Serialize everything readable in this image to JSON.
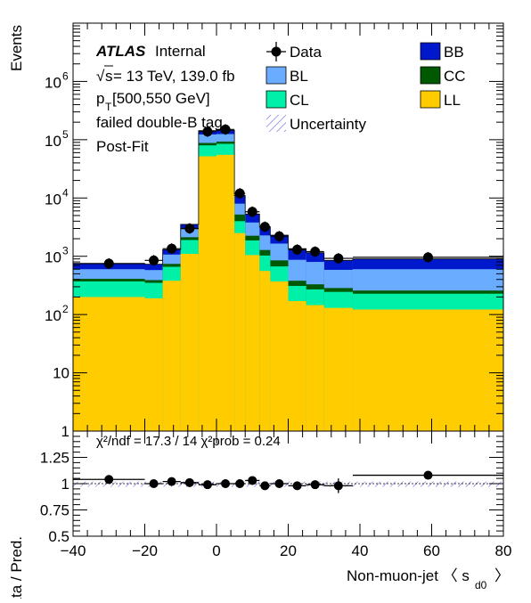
{
  "chart_data": [
    {
      "type": "stacked-histogram",
      "ylabel": "Events",
      "xlabel": "Non-muon-jet 〈 s",
      "xlabel_sub": "d0",
      "xlabel_end": "〉",
      "yscale": "log",
      "ylim": [
        1,
        10000000
      ],
      "xlim": [
        -40,
        80
      ],
      "y_ticks": [
        {
          "v": 1,
          "label": "1"
        },
        {
          "v": 10,
          "label": "10"
        },
        {
          "v": 100,
          "label": "10",
          "sup": "2"
        },
        {
          "v": 1000,
          "label": "10",
          "sup": "3"
        },
        {
          "v": 10000,
          "label": "10",
          "sup": "4"
        },
        {
          "v": 100000,
          "label": "10",
          "sup": "5"
        },
        {
          "v": 1000000,
          "label": "10",
          "sup": "6"
        }
      ],
      "bins": [
        [
          -40,
          -20
        ],
        [
          -20,
          -15
        ],
        [
          -15,
          -10
        ],
        [
          -10,
          -5
        ],
        [
          -5,
          0
        ],
        [
          0,
          5
        ],
        [
          5,
          8
        ],
        [
          8,
          12
        ],
        [
          12,
          15
        ],
        [
          15,
          20
        ],
        [
          20,
          25
        ],
        [
          25,
          30
        ],
        [
          30,
          38
        ],
        [
          38,
          80
        ]
      ],
      "series": [
        {
          "name": "LL",
          "color": "#ffcc00",
          "values": [
            200,
            190,
            380,
            1100,
            52000,
            55000,
            2500,
            1050,
            560,
            370,
            170,
            145,
            130,
            122
          ]
        },
        {
          "name": "CL",
          "color": "#00f0a8",
          "values": [
            170,
            160,
            280,
            800,
            28000,
            30000,
            1500,
            820,
            470,
            300,
            140,
            125,
            115,
            106
          ]
        },
        {
          "name": "CC",
          "color": "#005800",
          "values": [
            40,
            40,
            80,
            220,
            8000,
            8000,
            1200,
            380,
            250,
            180,
            70,
            60,
            40,
            30
          ]
        },
        {
          "name": "BL",
          "color": "#6aacff",
          "values": [
            190,
            190,
            330,
            800,
            35000,
            32000,
            2800,
            1550,
            1000,
            800,
            490,
            470,
            300,
            342
          ]
        },
        {
          "name": "BB",
          "color": "#0018cc",
          "values": [
            150,
            150,
            230,
            600,
            20000,
            20000,
            3000,
            1500,
            920,
            650,
            480,
            350,
            265,
            300
          ]
        }
      ],
      "data_points": [
        {
          "x": -30,
          "y": 750
        },
        {
          "x": -17.5,
          "y": 850
        },
        {
          "x": -12.5,
          "y": 1350
        },
        {
          "x": -7.5,
          "y": 3000
        },
        {
          "x": -2.5,
          "y": 138000
        },
        {
          "x": 2.5,
          "y": 150000
        },
        {
          "x": 6.5,
          "y": 12000
        },
        {
          "x": 10,
          "y": 5800
        },
        {
          "x": 13.5,
          "y": 3200
        },
        {
          "x": 17.5,
          "y": 2200
        },
        {
          "x": 22.5,
          "y": 1300
        },
        {
          "x": 27.5,
          "y": 1200
        },
        {
          "x": 34,
          "y": 920
        },
        {
          "x": 59,
          "y": 960
        }
      ],
      "legend": [
        {
          "name": "Data",
          "kind": "marker"
        },
        {
          "name": "BL",
          "kind": "box",
          "color": "#6aacff"
        },
        {
          "name": "CL",
          "kind": "box",
          "color": "#00f0a8"
        },
        {
          "name": "Uncertainty",
          "kind": "hatch"
        },
        {
          "name": "BB",
          "kind": "box",
          "color": "#0018cc"
        },
        {
          "name": "CC",
          "kind": "box",
          "color": "#005800"
        },
        {
          "name": "LL",
          "kind": "box",
          "color": "#ffcc00"
        }
      ],
      "legend_placement": "top-right",
      "annotations": {
        "atlas": "ATLAS",
        "internal": "Internal",
        "energy_prefix": "s",
        "energy": " = 13 TeV, 139.0 fb",
        "pt_label": "p",
        "pt_sub": "T",
        "pt_range": " [500,550 GeV]",
        "tag": "failed double-B tag",
        "fit": "Post-Fit"
      }
    },
    {
      "type": "ratio",
      "ylabel": "Data / Pred.",
      "ylim": [
        0.5,
        1.5
      ],
      "y_ticks": [
        {
          "v": 0.5,
          "label": "0.5"
        },
        {
          "v": 0.75,
          "label": "0.75"
        },
        {
          "v": 1,
          "label": "1"
        },
        {
          "v": 1.25,
          "label": "1.25"
        }
      ],
      "x_ticks": [
        {
          "v": -40,
          "label": "−40"
        },
        {
          "v": -20,
          "label": "−20"
        },
        {
          "v": 0,
          "label": "0"
        },
        {
          "v": 20,
          "label": "20"
        },
        {
          "v": 40,
          "label": "40"
        },
        {
          "v": 60,
          "label": "60"
        },
        {
          "v": 80,
          "label": "80"
        }
      ],
      "points": [
        {
          "x": -30,
          "xlo": -40,
          "xhi": -20,
          "y": 1.04,
          "err": 0.04
        },
        {
          "x": -17.5,
          "xlo": -20,
          "xhi": -15,
          "y": 1.0,
          "err": 0.02
        },
        {
          "x": -12.5,
          "xlo": -15,
          "xhi": -10,
          "y": 1.02,
          "err": 0.02
        },
        {
          "x": -7.5,
          "xlo": -10,
          "xhi": -5,
          "y": 1.01,
          "err": 0.02
        },
        {
          "x": -2.5,
          "xlo": -5,
          "xhi": 0,
          "y": 0.99,
          "err": 0.0
        },
        {
          "x": 2.5,
          "xlo": 0,
          "xhi": 5,
          "y": 1.0,
          "err": 0.0
        },
        {
          "x": 6.5,
          "xlo": 5,
          "xhi": 8,
          "y": 1.0,
          "err": 0.02
        },
        {
          "x": 10,
          "xlo": 8,
          "xhi": 12,
          "y": 1.03,
          "err": 0.02
        },
        {
          "x": 13.5,
          "xlo": 12,
          "xhi": 15,
          "y": 0.98,
          "err": 0.03
        },
        {
          "x": 17.5,
          "xlo": 15,
          "xhi": 20,
          "y": 1.0,
          "err": 0.03
        },
        {
          "x": 22.5,
          "xlo": 20,
          "xhi": 25,
          "y": 0.98,
          "err": 0.04
        },
        {
          "x": 27.5,
          "xlo": 25,
          "xhi": 30,
          "y": 0.99,
          "err": 0.04
        },
        {
          "x": 34,
          "xlo": 30,
          "xhi": 38,
          "y": 0.98,
          "err": 0.07
        },
        {
          "x": 59,
          "xlo": 38,
          "xhi": 80,
          "y": 1.08,
          "err": 0.04
        }
      ],
      "uncertainty_band": [
        0.97,
        1.02
      ],
      "text": "χ²/ndf = 17.3 / 14    χ²prob = 0.24"
    }
  ]
}
